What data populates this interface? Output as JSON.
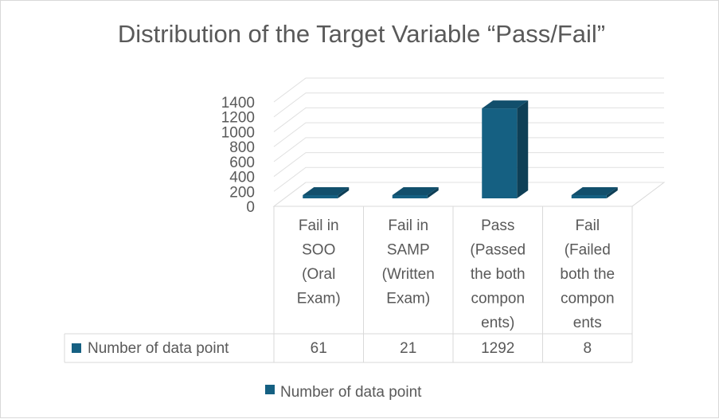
{
  "chart_data": {
    "type": "bar",
    "title": "Distribution of the Target Variable “Pass/Fail”",
    "categories": [
      [
        "Fail in",
        "SOO",
        "(Oral",
        "Exam)"
      ],
      [
        "Fail in",
        "SAMP",
        "(Written",
        "Exam)"
      ],
      [
        "Pass",
        "(Passed",
        "the both",
        "compon",
        "ents)"
      ],
      [
        "Fail",
        "(Failed",
        "both the",
        "compon",
        "ents"
      ]
    ],
    "series": [
      {
        "name": "Number of data point",
        "values": [
          61,
          21,
          1292,
          8
        ],
        "color": "#156082"
      }
    ],
    "table_values": [
      "61",
      "21",
      "1292",
      "8"
    ],
    "yticks": [
      "0",
      "200",
      "400",
      "600",
      "800",
      "1000",
      "1200",
      "1400"
    ],
    "ylim": [
      0,
      1400
    ],
    "grid": true,
    "legend": "bottom",
    "data_table": true
  }
}
